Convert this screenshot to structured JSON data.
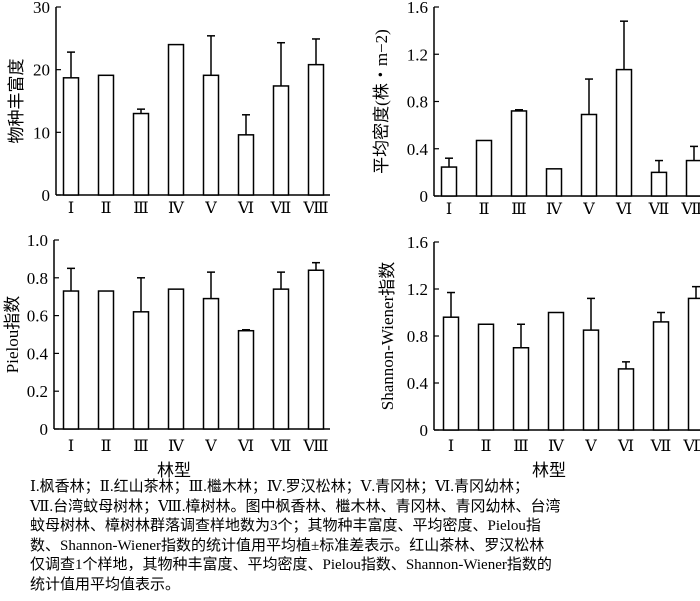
{
  "chart_data": [
    {
      "type": "bar",
      "ylabel": "物种丰富度",
      "xlabel": "",
      "categories": [
        "Ⅰ",
        "Ⅱ",
        "Ⅲ",
        "Ⅳ",
        "Ⅴ",
        "Ⅵ",
        "Ⅶ",
        "Ⅷ"
      ],
      "values": [
        18.7,
        19.1,
        13.0,
        24.0,
        19.1,
        9.6,
        17.4,
        20.8
      ],
      "upper": [
        22.8,
        null,
        13.7,
        null,
        25.4,
        12.8,
        24.3,
        24.9
      ],
      "ylim": [
        0,
        30
      ],
      "yticks": [
        0,
        10,
        20,
        30
      ],
      "ytick_labels": [
        "0",
        "10",
        "20",
        "30"
      ]
    },
    {
      "type": "bar",
      "ylabel": "平均密度(株・m−2)",
      "xlabel": "",
      "categories": [
        "Ⅰ",
        "Ⅱ",
        "Ⅲ",
        "Ⅳ",
        "Ⅴ",
        "Ⅵ",
        "Ⅶ",
        "Ⅷ"
      ],
      "values": [
        0.245,
        0.47,
        0.72,
        0.23,
        0.69,
        1.07,
        0.2,
        0.3
      ],
      "upper": [
        0.32,
        null,
        0.73,
        null,
        0.99,
        1.48,
        0.3,
        0.42
      ],
      "ylim": [
        0,
        1.6
      ],
      "yticks": [
        0,
        0.4,
        0.8,
        1.2,
        1.6
      ],
      "ytick_labels": [
        "0",
        "0.4",
        "0.8",
        "1.2",
        "1.6"
      ]
    },
    {
      "type": "bar",
      "ylabel": "Pielou指数",
      "xlabel": "林型",
      "categories": [
        "Ⅰ",
        "Ⅱ",
        "Ⅲ",
        "Ⅳ",
        "Ⅴ",
        "Ⅵ",
        "Ⅶ",
        "Ⅷ"
      ],
      "values": [
        0.73,
        0.73,
        0.62,
        0.74,
        0.69,
        0.52,
        0.74,
        0.84
      ],
      "upper": [
        0.85,
        null,
        0.8,
        null,
        0.83,
        0.525,
        0.83,
        0.88
      ],
      "ylim": [
        0,
        1.0
      ],
      "yticks": [
        0,
        0.2,
        0.4,
        0.6,
        0.8,
        1.0
      ],
      "ytick_labels": [
        "0",
        "0.2",
        "0.4",
        "0.6",
        "0.8",
        "1.0"
      ]
    },
    {
      "type": "bar",
      "ylabel": "Shannon-Wiener指数",
      "xlabel": "林型",
      "categories": [
        "Ⅰ",
        "Ⅱ",
        "Ⅲ",
        "Ⅳ",
        "Ⅴ",
        "Ⅵ",
        "Ⅶ",
        "Ⅷ"
      ],
      "values": [
        0.96,
        0.9,
        0.7,
        1.0,
        0.85,
        0.52,
        0.92,
        1.12
      ],
      "upper": [
        1.17,
        null,
        0.9,
        null,
        1.12,
        0.58,
        1.0,
        1.22
      ],
      "ylim": [
        0,
        1.6
      ],
      "yticks": [
        0,
        0.4,
        0.8,
        1.2,
        1.6
      ],
      "ytick_labels": [
        "0",
        "0.4",
        "0.8",
        "1.2",
        "1.6"
      ]
    }
  ],
  "caption": [
    "Ⅰ.枫香林；Ⅱ.红山茶林；Ⅲ.檵木林；Ⅳ.罗汉松林；Ⅴ.青冈林；Ⅵ.青冈幼林；",
    "Ⅶ.台湾蚊母树林；Ⅷ.樟树林。图中枫香林、檵木林、青冈林、青冈幼林、台湾",
    "蚊母树林、樟树林群落调查样地数为3个；其物种丰富度、平均密度、Pielou指",
    "数、Shannon-Wiener指数的统计值用平均植±标准差表示。红山茶林、罗汉松林",
    "仅调查1个样地，其物种丰富度、平均密度、Pielou指数、Shannon-Wiener指数的",
    "统计值用平均值表示。"
  ],
  "colors": {
    "bar_fill": "#ffffff",
    "stroke": "#000000"
  }
}
